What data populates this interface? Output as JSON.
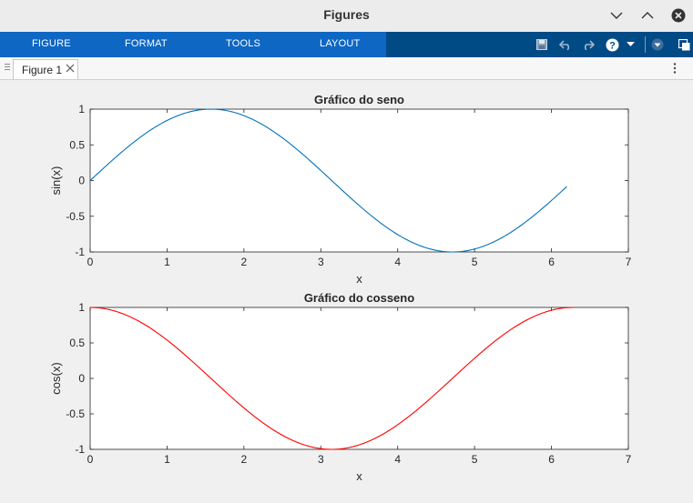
{
  "window": {
    "title": "Figures"
  },
  "ribbon": {
    "tabs": [
      {
        "label": "FIGURE"
      },
      {
        "label": "FORMAT"
      },
      {
        "label": "TOOLS"
      },
      {
        "label": "LAYOUT"
      }
    ],
    "quick_access": [
      "save-icon",
      "undo-icon",
      "redo-icon",
      "help-icon",
      "dropdown-icon",
      "collapse-ribbon-icon",
      "undock-icon"
    ]
  },
  "document_tabs": [
    {
      "label": "Figure 1"
    }
  ],
  "colors": {
    "ribbon": "#004a86",
    "ribbon_tabs": "#0e67c2",
    "sine": "#0072bd",
    "cosine": "#ff0000"
  },
  "chart_data": [
    {
      "type": "line",
      "title": "Gráfico do seno",
      "xlabel": "x",
      "ylabel": "sin(x)",
      "xlim": [
        0,
        7
      ],
      "ylim": [
        -1,
        1
      ],
      "xticks": [
        "0",
        "1",
        "2",
        "3",
        "4",
        "5",
        "6",
        "7"
      ],
      "yticks": [
        "-1",
        "-0.5",
        "0",
        "0.5",
        "1"
      ],
      "series": [
        {
          "function": "sin",
          "x_start": 0,
          "x_end": 6.2,
          "color": "#0072bd"
        }
      ]
    },
    {
      "type": "line",
      "title": "Gráfico do cosseno",
      "xlabel": "x",
      "ylabel": "cos(x)",
      "xlim": [
        0,
        7
      ],
      "ylim": [
        -1,
        1
      ],
      "xticks": [
        "0",
        "1",
        "2",
        "3",
        "4",
        "5",
        "6",
        "7"
      ],
      "yticks": [
        "-1",
        "-0.5",
        "0",
        "0.5",
        "1"
      ],
      "series": [
        {
          "function": "cos",
          "x_start": 0,
          "x_end": 6.2832,
          "color": "#ff0000"
        }
      ]
    }
  ]
}
